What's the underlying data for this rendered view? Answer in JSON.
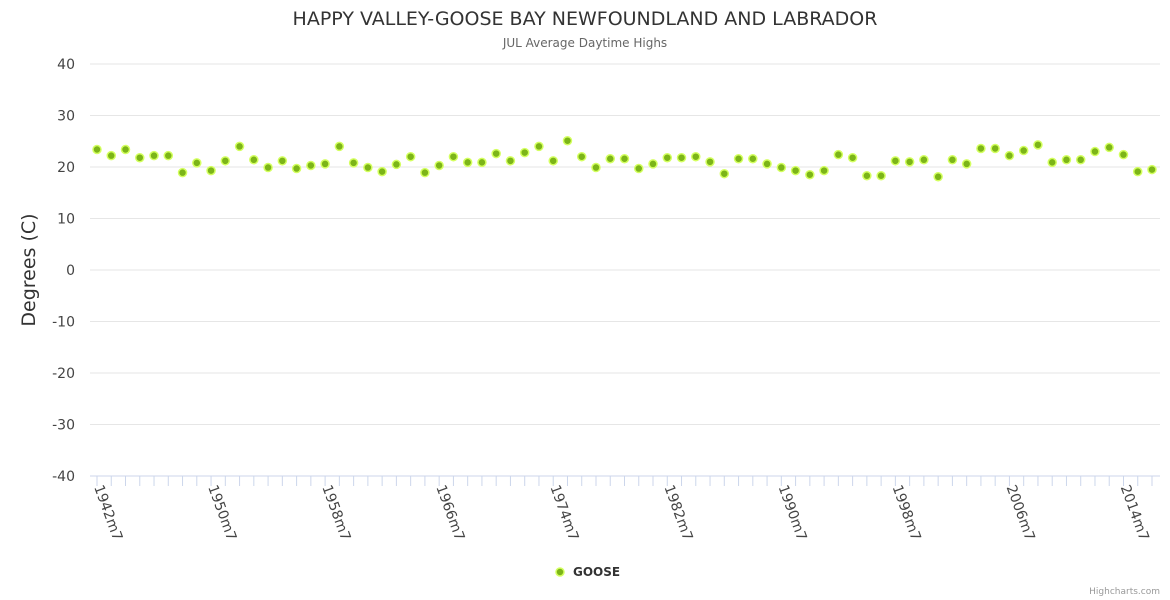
{
  "chart_data": {
    "type": "scatter",
    "title": "HAPPY VALLEY-GOOSE BAY NEWFOUNDLAND AND LABRADOR",
    "subtitle": "JUL Average Daytime Highs",
    "xlabel": "",
    "ylabel": "Degrees (C)",
    "ylim": [
      -40,
      40
    ],
    "yticks": [
      40,
      30,
      20,
      10,
      0,
      -10,
      -20,
      -30,
      -40
    ],
    "x_start_year": 1942,
    "x_tick_labels": [
      "1942m7",
      "1950m7",
      "1958m7",
      "1966m7",
      "1974m7",
      "1982m7",
      "1990m7",
      "1998m7",
      "2006m7",
      "2014m7"
    ],
    "x_tick_years": [
      1942,
      1950,
      1958,
      1966,
      1974,
      1982,
      1990,
      1998,
      2006,
      2014
    ],
    "x_range_years": [
      1942,
      2016
    ],
    "grid": true,
    "legend_position": "bottom-center",
    "series": [
      {
        "name": "GOOSE",
        "color": "#7cb518",
        "marker_fill": "#7cb518",
        "marker_edge": "#d4ff60",
        "years": [
          1942,
          1943,
          1944,
          1945,
          1946,
          1947,
          1948,
          1949,
          1950,
          1951,
          1952,
          1953,
          1954,
          1955,
          1956,
          1957,
          1958,
          1959,
          1960,
          1961,
          1962,
          1963,
          1964,
          1965,
          1966,
          1967,
          1968,
          1969,
          1970,
          1971,
          1972,
          1973,
          1974,
          1975,
          1976,
          1977,
          1978,
          1979,
          1980,
          1981,
          1982,
          1983,
          1984,
          1985,
          1986,
          1987,
          1988,
          1989,
          1990,
          1991,
          1992,
          1993,
          1994,
          1995,
          1996,
          1997,
          1998,
          1999,
          2000,
          2001,
          2002,
          2003,
          2004,
          2005,
          2006,
          2007,
          2008,
          2009,
          2010,
          2011,
          2012,
          2013,
          2014,
          2015,
          2016
        ],
        "values": [
          23.4,
          22.2,
          23.4,
          21.8,
          22.2,
          22.2,
          18.9,
          20.8,
          19.3,
          21.2,
          24.0,
          21.4,
          19.9,
          21.2,
          19.7,
          20.3,
          20.6,
          24.0,
          20.8,
          19.9,
          19.1,
          20.5,
          22.0,
          18.9,
          20.3,
          22.0,
          20.9,
          20.9,
          22.6,
          21.2,
          22.8,
          24.0,
          21.2,
          25.1,
          22.0,
          19.9,
          21.6,
          21.6,
          19.7,
          20.6,
          21.8,
          21.8,
          22.0,
          21.0,
          18.7,
          21.6,
          21.6,
          20.6,
          19.9,
          19.3,
          18.5,
          19.3,
          22.4,
          21.8,
          18.3,
          18.3,
          21.2,
          21.0,
          21.4,
          18.1,
          21.4,
          20.6,
          23.6,
          23.6,
          22.2,
          23.2,
          24.3,
          20.9,
          21.4,
          21.4,
          23.0,
          23.8,
          22.4,
          19.1,
          19.5
        ]
      }
    ]
  },
  "legend": {
    "label": "GOOSE"
  },
  "credits": "Highcharts.com"
}
